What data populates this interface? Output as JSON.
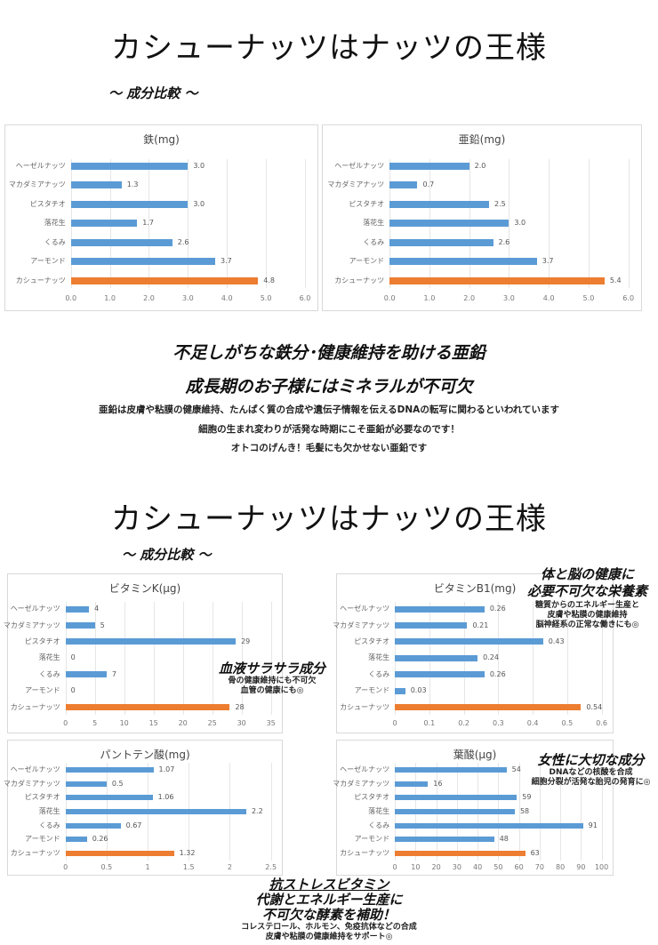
{
  "section1": {
    "title": "カシューナッツはナッツの王様",
    "subtitle": "～ 成分比較 ～",
    "headline1": "不足しがちな鉄分･健康維持を助ける亜鉛",
    "headline2": "成長期のお子様にはミネラルが不可欠",
    "body": [
      "亜鉛は皮膚や粘膜の健康維持、たんぱく質の合成や遺伝子情報を伝えるDNAの転写に関わるといわれています",
      "細胞の生まれ変わりが活発な時期にこそ亜鉛が必要なのです！",
      "オトコのげんき！毛髪にも欠かせない亜鉛です"
    ]
  },
  "section2": {
    "title": "カシューナッツはナッツの王様",
    "subtitle": "～ 成分比較 ～",
    "notes": {
      "vitk": {
        "head": "血液サラサラ成分",
        "lines": [
          "骨の健康維持にも不可欠",
          "血管の健康にも◎"
        ]
      },
      "vitb1": {
        "head1": "体と脳の健康に",
        "head2": "必要不可欠な栄養素",
        "lines": [
          "糖質からのエネルギー生産と",
          "皮膚や粘膜の健康維持",
          "脳神経系の正常な働きにも◎"
        ]
      },
      "folate": {
        "head": "女性に大切な成分",
        "lines": [
          "DNAなどの核酸を合成",
          "細胞分裂が活発な胎児の発育に◎"
        ]
      },
      "pantothenic": {
        "head1": "抗ストレスビタミン",
        "head2": "代謝とエネルギー生産に",
        "head3": "不可欠な酵素を補助！",
        "lines": [
          "コレステロール、ホルモン、免疫抗体などの合成",
          "皮膚や粘膜の健康維持をサポート◎"
        ]
      }
    }
  },
  "colors": {
    "bar": "#5b9bd5",
    "highlight": "#ed7d31"
  },
  "chart_data": [
    {
      "id": "iron",
      "type": "bar",
      "orientation": "horizontal",
      "title": "鉄(mg)",
      "categories": [
        "ヘーゼルナッツ",
        "マカダミアナッツ",
        "ピスタチオ",
        "落花生",
        "くるみ",
        "アーモンド",
        "カシューナッツ"
      ],
      "values": [
        3.0,
        1.3,
        3.0,
        1.7,
        2.6,
        3.7,
        4.8
      ],
      "value_labels": [
        "3.0",
        "1.3",
        "3.0",
        "1.7",
        "2.6",
        "3.7",
        "4.8"
      ],
      "xlim": [
        0,
        6
      ],
      "ticks": [
        "0.0",
        "1.0",
        "2.0",
        "3.0",
        "4.0",
        "5.0",
        "6.0"
      ],
      "grid": true,
      "highlight": "カシューナッツ"
    },
    {
      "id": "zinc",
      "type": "bar",
      "orientation": "horizontal",
      "title": "亜鉛(mg)",
      "categories": [
        "ヘーゼルナッツ",
        "マカダミアナッツ",
        "ピスタチオ",
        "落花生",
        "くるみ",
        "アーモンド",
        "カシューナッツ"
      ],
      "values": [
        2.0,
        0.7,
        2.5,
        3.0,
        2.6,
        3.7,
        5.4
      ],
      "value_labels": [
        "2.0",
        "0.7",
        "2.5",
        "3.0",
        "2.6",
        "3.7",
        "5.4"
      ],
      "xlim": [
        0,
        6
      ],
      "ticks": [
        "0.0",
        "1.0",
        "2.0",
        "3.0",
        "4.0",
        "5.0",
        "6.0"
      ],
      "grid": true,
      "highlight": "カシューナッツ"
    },
    {
      "id": "vitk",
      "type": "bar",
      "orientation": "horizontal",
      "title": "ビタミンK(μg)",
      "categories": [
        "ヘーゼルナッツ",
        "マカダミアナッツ",
        "ピスタチオ",
        "落花生",
        "くるみ",
        "アーモンド",
        "カシューナッツ"
      ],
      "values": [
        4,
        5,
        29,
        0,
        7,
        0,
        28
      ],
      "value_labels": [
        "4",
        "5",
        "29",
        "0",
        "7",
        "0",
        "28"
      ],
      "xlim": [
        0,
        35
      ],
      "ticks": [
        "0",
        "5",
        "10",
        "15",
        "20",
        "25",
        "30",
        "35"
      ],
      "grid": true,
      "highlight": "カシューナッツ"
    },
    {
      "id": "vitb1",
      "type": "bar",
      "orientation": "horizontal",
      "title": "ビタミンB1(mg)",
      "categories": [
        "ヘーゼルナッツ",
        "マカダミアナッツ",
        "ピスタチオ",
        "落花生",
        "くるみ",
        "アーモンド",
        "カシューナッツ"
      ],
      "values": [
        0.26,
        0.21,
        0.43,
        0.24,
        0.26,
        0.03,
        0.54
      ],
      "value_labels": [
        "0.26",
        "0.21",
        "0.43",
        "0.24",
        "0.26",
        "0.03",
        "0.54"
      ],
      "xlim": [
        0,
        0.6
      ],
      "ticks": [
        "0",
        "0.1",
        "0.2",
        "0.3",
        "0.4",
        "0.5",
        "0.6"
      ],
      "grid": true,
      "highlight": "カシューナッツ"
    },
    {
      "id": "pantothenic",
      "type": "bar",
      "orientation": "horizontal",
      "title": "パントテン酸(mg)",
      "categories": [
        "ヘーゼルナッツ",
        "マカダミアナッツ",
        "ピスタチオ",
        "落花生",
        "くるみ",
        "アーモンド",
        "カシューナッツ"
      ],
      "values": [
        1.07,
        0.5,
        1.06,
        2.2,
        0.67,
        0.26,
        1.32
      ],
      "value_labels": [
        "1.07",
        "0.5",
        "1.06",
        "2.2",
        "0.67",
        "0.26",
        "1.32"
      ],
      "xlim": [
        0,
        2.5
      ],
      "ticks": [
        "0",
        "0.5",
        "1",
        "1.5",
        "2",
        "2.5"
      ],
      "grid": true,
      "highlight": "カシューナッツ"
    },
    {
      "id": "folate",
      "type": "bar",
      "orientation": "horizontal",
      "title": "葉酸(μg)",
      "categories": [
        "ヘーゼルナッツ",
        "マカダミアナッツ",
        "ピスタチオ",
        "落花生",
        "くるみ",
        "アーモンド",
        "カシューナッツ"
      ],
      "values": [
        54,
        16,
        59,
        58,
        91,
        48,
        63
      ],
      "value_labels": [
        "54",
        "16",
        "59",
        "58",
        "91",
        "48",
        "63"
      ],
      "xlim": [
        0,
        100
      ],
      "ticks": [
        "0",
        "10",
        "20",
        "30",
        "40",
        "50",
        "60",
        "70",
        "80",
        "90",
        "100"
      ],
      "grid": true,
      "highlight": "カシューナッツ"
    }
  ]
}
